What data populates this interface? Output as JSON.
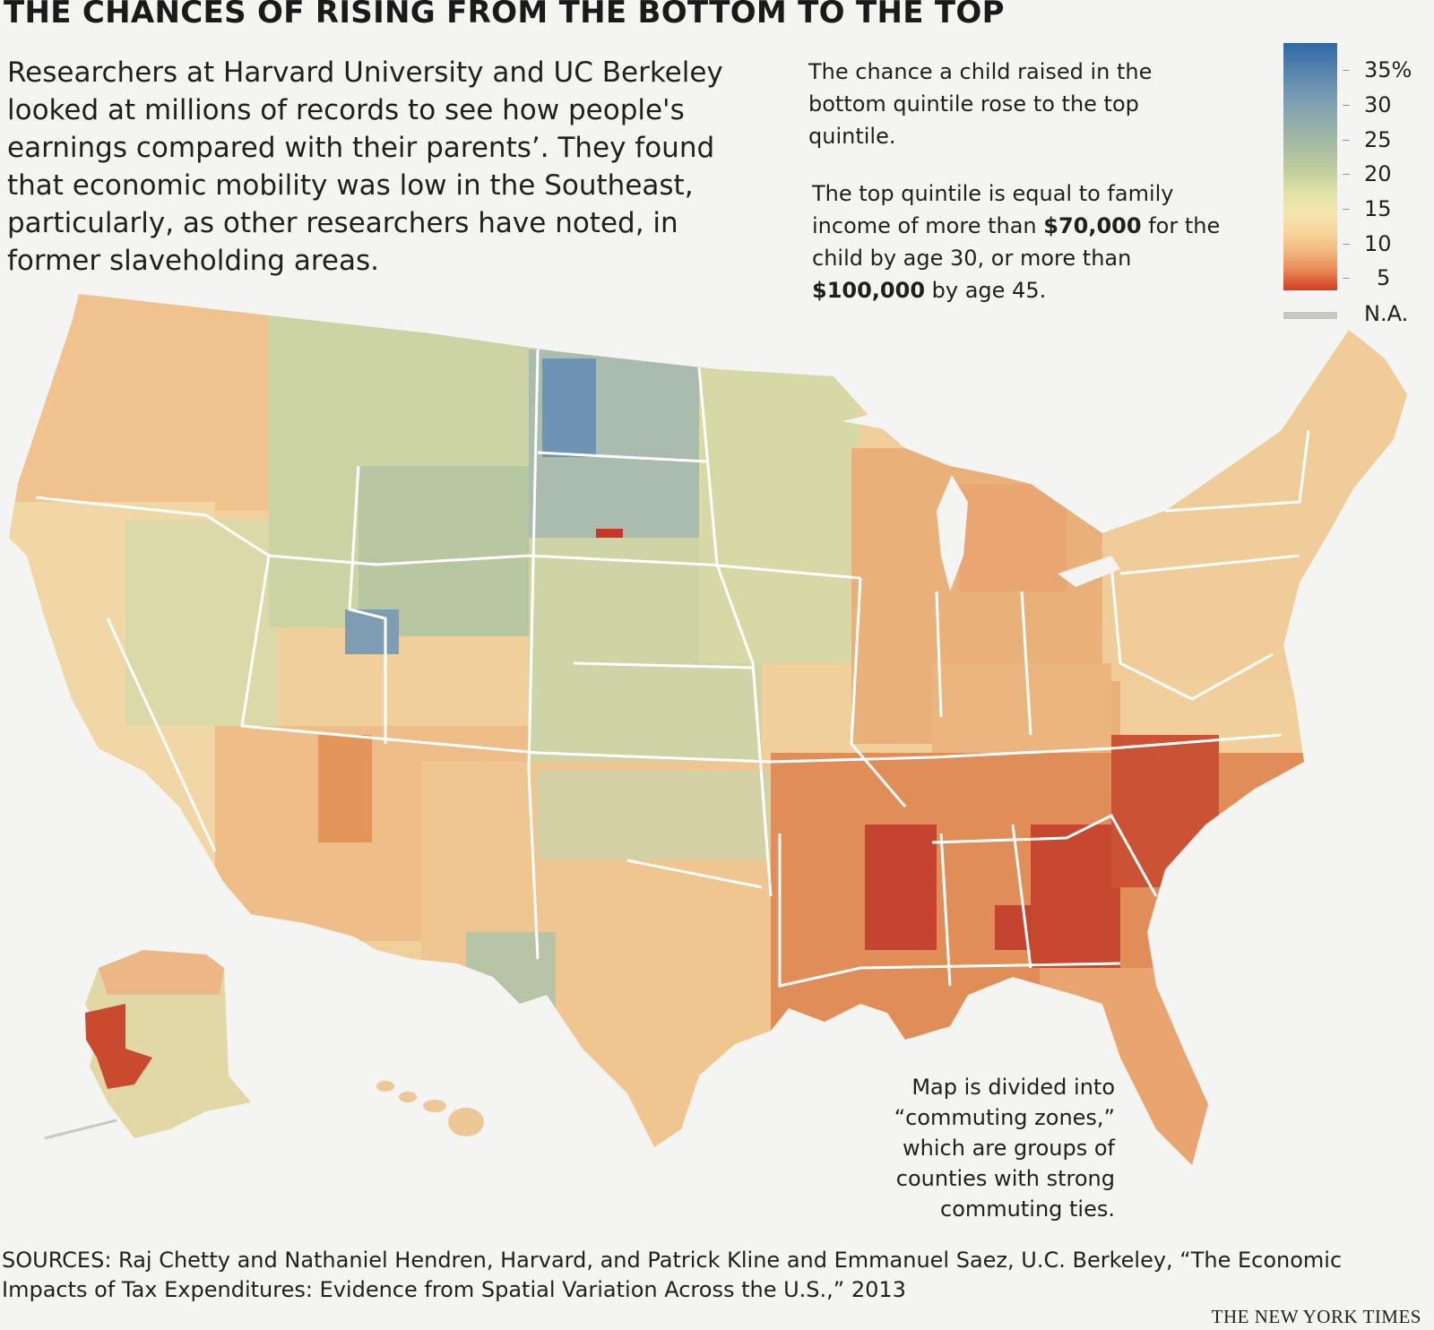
{
  "title": "THE CHANCES OF RISING FROM THE BOTTOM TO THE TOP",
  "intro": "Researchers at Harvard University and UC Berkeley looked at millions of records to see how people's earnings compared with their parents’. They found that economic mobility was low in the Southeast, particularly, as other researchers have noted, in former slaveholding areas.",
  "note_chance": "The chance a child raised in the bottom quintile rose to the top quintile.",
  "note_quintile": {
    "before": "The top quintile is equal to family income of more than ",
    "amount1": "$70,000",
    "middle": " for the child by age 30, or more than ",
    "amount2": "$100,000",
    "after": " by age 45."
  },
  "note_zones": "Map is divided into “commuting zones,” which are groups of counties with strong commuting ties.",
  "sources": "SOURCES: Raj Chetty and Nathaniel Hendren, Harvard, and Patrick Kline and Emmanuel Saez, U.C. Berkeley, “The Economic Impacts of Tax Expenditures: Evidence from Spatial Variation Across the U.S.,” 2013",
  "credit": "THE NEW YORK TIMES",
  "legend": {
    "labels": [
      "35%",
      "30",
      "25",
      "20",
      "15",
      "10",
      "5"
    ],
    "na_label": "N.A.",
    "colors": {
      "high": "#2c69a6",
      "mid": "#bccb9e",
      "low": "#f2b87f",
      "lowest": "#d23c22",
      "na": "#c8c8c8"
    }
  }
}
